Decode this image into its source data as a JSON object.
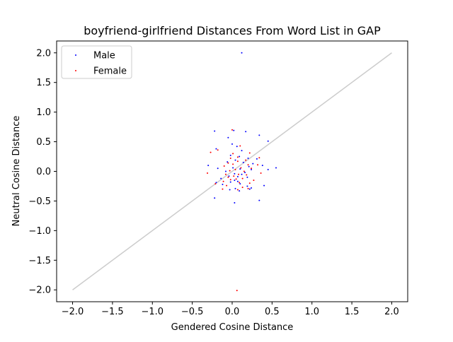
{
  "chart_data": {
    "type": "scatter",
    "title": "boyfriend-girlfriend Distances From Word List in GAP",
    "xlabel": "Gendered Cosine Distance",
    "ylabel": "Neutral Cosine Distance",
    "xlim": [
      -2.2,
      2.2
    ],
    "ylim": [
      -2.2,
      2.2
    ],
    "x_ticks": [
      -2.0,
      -1.5,
      -1.0,
      -0.5,
      0.0,
      0.5,
      1.0,
      1.5,
      2.0
    ],
    "x_tick_labels": [
      "−2.0",
      "−1.5",
      "−1.0",
      "−0.5",
      "0.0",
      "0.5",
      "1.0",
      "1.5",
      "2.0"
    ],
    "y_ticks": [
      -2.0,
      -1.5,
      -1.0,
      -0.5,
      0.0,
      0.5,
      1.0,
      1.5,
      2.0
    ],
    "y_tick_labels": [
      "−2.0",
      "−1.5",
      "−1.0",
      "−0.5",
      "0.0",
      "0.5",
      "1.0",
      "1.5",
      "2.0"
    ],
    "grid": false,
    "legend": "upper-left",
    "reference_line": {
      "x": [
        -2.0,
        2.0
      ],
      "y": [
        -2.0,
        2.0
      ],
      "color": "#cccccc"
    },
    "series": [
      {
        "name": "Male",
        "color": "#0000ff",
        "points": [
          [
            0.12,
            2.0
          ],
          [
            -0.22,
            0.68
          ],
          [
            0.02,
            0.69
          ],
          [
            0.17,
            0.67
          ],
          [
            0.34,
            0.61
          ],
          [
            -0.05,
            0.57
          ],
          [
            0.45,
            0.51
          ],
          [
            0.0,
            0.46
          ],
          [
            0.06,
            0.42
          ],
          [
            -0.2,
            0.38
          ],
          [
            0.12,
            0.35
          ],
          [
            -0.02,
            0.27
          ],
          [
            0.09,
            0.25
          ],
          [
            0.2,
            0.22
          ],
          [
            0.31,
            0.21
          ],
          [
            0.04,
            0.19
          ],
          [
            -0.06,
            0.16
          ],
          [
            0.14,
            0.15
          ],
          [
            0.26,
            0.13
          ],
          [
            -0.3,
            0.1
          ],
          [
            0.38,
            0.1
          ],
          [
            0.21,
            0.08
          ],
          [
            0.55,
            0.06
          ],
          [
            0.01,
            0.06
          ],
          [
            0.1,
            0.04
          ],
          [
            0.24,
            0.03
          ],
          [
            0.45,
            0.03
          ],
          [
            -0.08,
            0.0
          ],
          [
            0.16,
            -0.02
          ],
          [
            0.03,
            -0.04
          ],
          [
            0.12,
            -0.05
          ],
          [
            -0.04,
            -0.08
          ],
          [
            0.07,
            -0.09
          ],
          [
            0.19,
            -0.1
          ],
          [
            -0.14,
            -0.12
          ],
          [
            0.03,
            -0.15
          ],
          [
            0.07,
            -0.17
          ],
          [
            -0.02,
            -0.18
          ],
          [
            -0.2,
            -0.19
          ],
          [
            0.1,
            -0.21
          ],
          [
            -0.12,
            -0.22
          ],
          [
            0.4,
            -0.24
          ],
          [
            0.19,
            -0.25
          ],
          [
            0.24,
            -0.28
          ],
          [
            0.04,
            -0.29
          ],
          [
            -0.03,
            -0.31
          ],
          [
            0.09,
            -0.33
          ],
          [
            -0.22,
            -0.45
          ],
          [
            0.34,
            -0.49
          ],
          [
            0.03,
            -0.53
          ],
          [
            0.22,
            -0.3
          ],
          [
            -0.18,
            0.05
          ]
        ]
      },
      {
        "name": "Female",
        "color": "#ff0000",
        "points": [
          [
            0.06,
            -2.01
          ],
          [
            0.0,
            0.7
          ],
          [
            0.1,
            0.43
          ],
          [
            -0.27,
            0.32
          ],
          [
            -0.18,
            0.36
          ],
          [
            0.22,
            0.31
          ],
          [
            0.01,
            0.3
          ],
          [
            0.07,
            0.24
          ],
          [
            -0.02,
            0.22
          ],
          [
            0.34,
            0.23
          ],
          [
            0.17,
            0.19
          ],
          [
            0.07,
            0.17
          ],
          [
            -0.05,
            0.14
          ],
          [
            0.2,
            0.11
          ],
          [
            0.32,
            0.11
          ],
          [
            0.01,
            0.12
          ],
          [
            -0.1,
            0.09
          ],
          [
            0.11,
            0.06
          ],
          [
            0.24,
            0.05
          ],
          [
            0.04,
            0.03
          ],
          [
            -0.03,
            0.01
          ],
          [
            0.15,
            0.0
          ],
          [
            -0.31,
            -0.03
          ],
          [
            0.36,
            -0.03
          ],
          [
            0.08,
            -0.05
          ],
          [
            -0.08,
            -0.05
          ],
          [
            0.18,
            -0.06
          ],
          [
            0.02,
            -0.08
          ],
          [
            -0.05,
            -0.1
          ],
          [
            0.13,
            -0.12
          ],
          [
            0.05,
            -0.13
          ],
          [
            -0.02,
            -0.14
          ],
          [
            0.27,
            -0.15
          ],
          [
            -0.11,
            -0.17
          ],
          [
            0.09,
            -0.19
          ],
          [
            -0.21,
            -0.21
          ],
          [
            0.22,
            -0.2
          ],
          [
            -0.07,
            -0.24
          ],
          [
            0.13,
            -0.27
          ],
          [
            -0.12,
            -0.3
          ],
          [
            0.07,
            -0.31
          ],
          [
            0.2,
            -0.29
          ]
        ]
      }
    ]
  }
}
